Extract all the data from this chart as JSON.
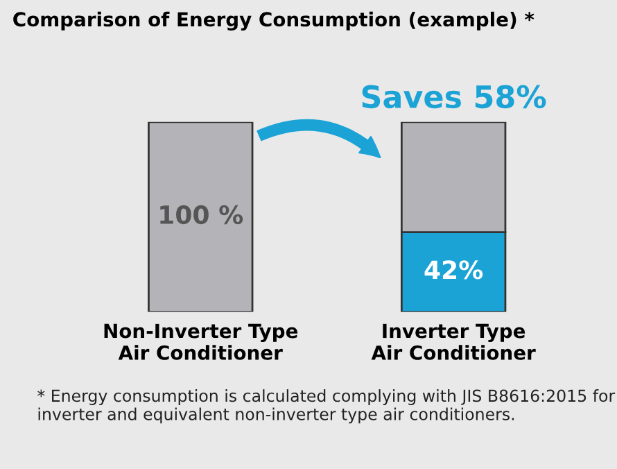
{
  "chart_data": {
    "type": "bar",
    "title": "Comparison of Energy Consumption (example) *",
    "categories": [
      "Non-Inverter Type\nAir Conditioner",
      "Inverter Type\nAir Conditioner"
    ],
    "stacked": true,
    "ylim": [
      0,
      100
    ],
    "tick_labels": "x",
    "series": [
      {
        "colors": [
          "#b4b4b8",
          "#1ba3d6"
        ],
        "values": [
          100,
          42
        ],
        "value_labels": [
          "100 %",
          "42%"
        ]
      },
      {
        "colors": [
          "#b4b4b8",
          "#b4b4b8"
        ],
        "values": [
          null,
          58
        ],
        "value_labels": [
          null,
          null
        ]
      }
    ],
    "annotations": [
      {
        "text": "Saves 58%",
        "x": "Inverter Type\nAir Conditioner",
        "y": 100
      },
      "* Energy consumption is calculated complying with JIS B8616:2015 for inverter and equivalent non-inverter type air conditioners."
    ]
  }
}
